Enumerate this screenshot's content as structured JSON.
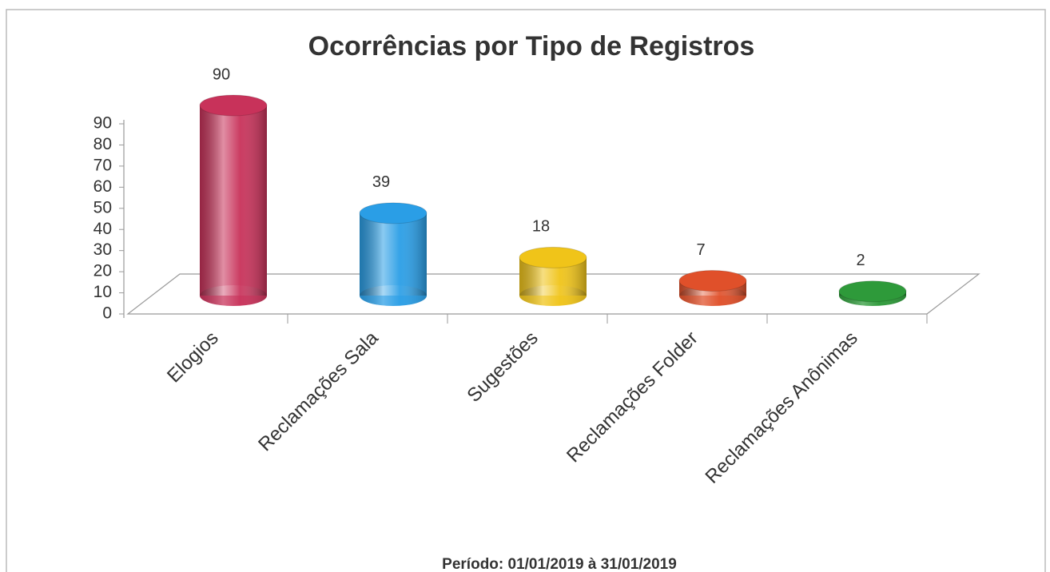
{
  "chart_data": {
    "type": "bar3d",
    "title": "Ocorrências por Tipo de Registros",
    "subtitle": "Período: 01/01/2019 à 31/01/2019",
    "categories": [
      "Elogios",
      "Reclamações Sala",
      "Sugestões",
      "Reclamações Folder",
      "Reclamações Anônimas"
    ],
    "values": [
      90,
      39,
      18,
      7,
      2
    ],
    "colors": [
      "#c8325a",
      "#2a9ee6",
      "#f0c419",
      "#e0502a",
      "#2e9a3a"
    ],
    "ylim": [
      0,
      90
    ],
    "yticks": [
      0,
      10,
      20,
      30,
      40,
      50,
      60,
      70,
      80,
      90
    ],
    "grid": false
  }
}
